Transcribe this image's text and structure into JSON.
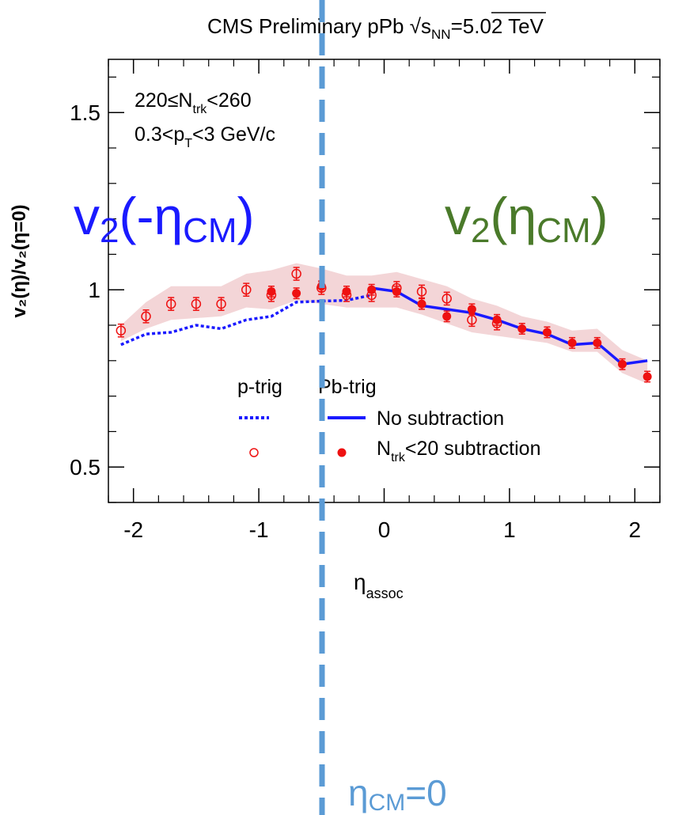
{
  "header": {
    "title_prefix": "CMS Preliminary  pPb ",
    "sqrt_s_sub": "NN",
    "sqrt_s_value": "=5.02 TeV"
  },
  "chart_data": {
    "type": "scatter",
    "xlabel": {
      "main": "η",
      "sub": "assoc"
    },
    "ylabel": "v₂(η)/v₂(η=0)",
    "xlim": [
      -2.2,
      2.2
    ],
    "ylim": [
      0.4,
      1.65
    ],
    "x_ticks": [
      -2,
      -1,
      0,
      1,
      2
    ],
    "x_tick_labels": [
      "-2",
      "-1",
      "0",
      "1",
      "2"
    ],
    "y_ticks": [
      0.5,
      1,
      1.5
    ],
    "y_tick_labels": [
      "0.5",
      "1",
      "1.5"
    ],
    "grid": false,
    "cuts": [
      {
        "main": "220≤N",
        "sub": "trk",
        "rest": "<260"
      },
      {
        "main": "0.3<p",
        "sub": "T",
        "rest": "<3 GeV/c"
      }
    ],
    "legend": {
      "col_header_1": "p-trig",
      "col_header_2": "Pb-trig",
      "row1": {
        "label": "No subtraction"
      },
      "row2": {
        "main": "N",
        "sub": "trk",
        "rest": "<20 subtraction"
      }
    },
    "series": [
      {
        "name": "p-trig, No subtraction",
        "style": "dotted-line",
        "color": "#1a1aff",
        "x": [
          -2.1,
          -1.9,
          -1.7,
          -1.5,
          -1.3,
          -1.1,
          -0.9,
          -0.7,
          -0.5,
          -0.3,
          -0.1
        ],
        "y": [
          0.845,
          0.875,
          0.88,
          0.9,
          0.89,
          0.915,
          0.925,
          0.965,
          0.968,
          0.97,
          0.985
        ]
      },
      {
        "name": "Pb-trig, No subtraction",
        "style": "solid-line",
        "color": "#1a1aff",
        "x": [
          -0.1,
          0.1,
          0.3,
          0.5,
          0.7,
          0.9,
          1.1,
          1.3,
          1.5,
          1.7,
          1.9,
          2.1
        ],
        "y": [
          1.005,
          0.995,
          0.955,
          0.945,
          0.935,
          0.915,
          0.89,
          0.875,
          0.845,
          0.85,
          0.79,
          0.8
        ]
      },
      {
        "name": "p-trig, Ntrk<20 subtraction",
        "style": "open-circle",
        "color": "#ee1111",
        "x": [
          -2.1,
          -1.9,
          -1.7,
          -1.5,
          -1.3,
          -1.1,
          -0.9,
          -0.7,
          -0.5,
          -0.3,
          -0.1,
          0.1,
          0.3,
          0.5,
          0.7,
          0.9
        ],
        "y": [
          0.885,
          0.925,
          0.96,
          0.96,
          0.96,
          1.0,
          0.985,
          1.045,
          1.005,
          0.985,
          0.985,
          1.005,
          0.995,
          0.975,
          0.915,
          0.905
        ],
        "err": [
          0.018,
          0.018,
          0.018,
          0.018,
          0.018,
          0.018,
          0.018,
          0.018,
          0.018,
          0.018,
          0.018,
          0.018,
          0.018,
          0.018,
          0.018,
          0.018
        ]
      },
      {
        "name": "Pb-trig, Ntrk<20 subtraction",
        "style": "filled-circle",
        "color": "#ee1111",
        "x": [
          -0.9,
          -0.7,
          -0.5,
          -0.3,
          -0.1,
          0.1,
          0.3,
          0.5,
          0.7,
          0.9,
          1.1,
          1.3,
          1.5,
          1.7,
          1.9,
          2.1
        ],
        "y": [
          0.995,
          0.99,
          1.01,
          0.995,
          1.0,
          0.995,
          0.96,
          0.925,
          0.945,
          0.915,
          0.89,
          0.88,
          0.85,
          0.85,
          0.79,
          0.755
        ],
        "err": [
          0.015,
          0.015,
          0.015,
          0.015,
          0.015,
          0.015,
          0.015,
          0.015,
          0.015,
          0.015,
          0.015,
          0.015,
          0.015,
          0.015,
          0.015,
          0.015
        ]
      }
    ],
    "systematic_band": {
      "color": "#c8414b",
      "x": [
        -2.1,
        -1.9,
        -1.7,
        -1.5,
        -1.3,
        -1.1,
        -0.9,
        -0.7,
        -0.5,
        -0.3,
        -0.1,
        0.1,
        0.3,
        0.5,
        0.7,
        0.9,
        1.1,
        1.3,
        1.5,
        1.7,
        1.9,
        2.1
      ],
      "low": [
        0.855,
        0.89,
        0.915,
        0.92,
        0.925,
        0.95,
        0.945,
        0.97,
        0.96,
        0.95,
        0.95,
        0.95,
        0.93,
        0.905,
        0.88,
        0.87,
        0.86,
        0.85,
        0.825,
        0.825,
        0.765,
        0.735
      ],
      "high": [
        0.9,
        0.965,
        1.01,
        1.01,
        1.01,
        1.045,
        1.055,
        1.075,
        1.06,
        1.04,
        1.04,
        1.05,
        1.03,
        1.01,
        0.975,
        0.955,
        0.925,
        0.91,
        0.885,
        0.89,
        0.83,
        0.8
      ]
    },
    "overlay": {
      "left_label": {
        "main": "v",
        "sub": "2",
        "rest_open": "(-η",
        "sub2": "CM",
        "rest_close": ")",
        "color": "#1a1aff"
      },
      "right_label": {
        "main": "v",
        "sub": "2",
        "rest_open": "(η",
        "sub2": "CM",
        "rest_close": ")",
        "color": "#4a7a2a"
      },
      "divider_label": {
        "main": "η",
        "sub": "CM",
        "rest": "=0",
        "color": "#5b9bd5"
      }
    }
  }
}
